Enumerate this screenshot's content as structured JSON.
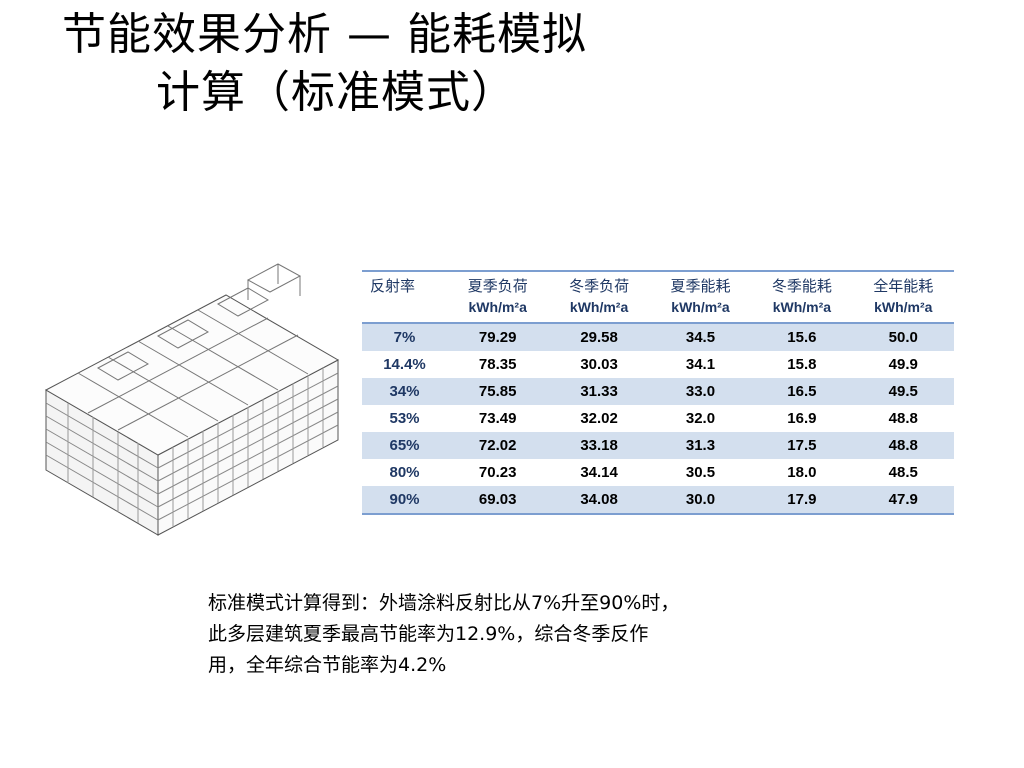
{
  "title": {
    "line1": "节能效果分析 — 能耗模拟",
    "line2": "计算（标准模式）"
  },
  "table": {
    "headers": [
      {
        "label": "反射率",
        "unit": ""
      },
      {
        "label": "夏季负荷",
        "unit": "kWh/m²a"
      },
      {
        "label": "冬季负荷",
        "unit": "kWh/m²a"
      },
      {
        "label": "夏季能耗",
        "unit": "kWh/m²a"
      },
      {
        "label": "冬季能耗",
        "unit": "kWh/m²a"
      },
      {
        "label": "全年能耗",
        "unit": "kWh/m²a"
      }
    ],
    "rows": [
      [
        "7%",
        "79.29",
        "29.58",
        "34.5",
        "15.6",
        "50.0"
      ],
      [
        "14.4%",
        "78.35",
        "30.03",
        "34.1",
        "15.8",
        "49.9"
      ],
      [
        "34%",
        "75.85",
        "31.33",
        "33.0",
        "16.5",
        "49.5"
      ],
      [
        "53%",
        "73.49",
        "32.02",
        "32.0",
        "16.9",
        "48.8"
      ],
      [
        "65%",
        "72.02",
        "33.18",
        "31.3",
        "17.5",
        "48.8"
      ],
      [
        "80%",
        "70.23",
        "34.14",
        "30.5",
        "18.0",
        "48.5"
      ],
      [
        "90%",
        "69.03",
        "34.08",
        "30.0",
        "17.9",
        "47.9"
      ]
    ]
  },
  "summary": {
    "line1": "标准模式计算得到：外墙涂料反射比从7%升至90%时，",
    "line2": "此多层建筑夏季最高节能率为12.9%，综合冬季反作",
    "line3": "用，全年综合节能率为4.2%"
  },
  "colors": {
    "header_text": "#1f3864",
    "stripe": "#d3dfee",
    "rule": "#7c9ed0"
  },
  "image": {
    "icon": "building-isometric-model"
  }
}
